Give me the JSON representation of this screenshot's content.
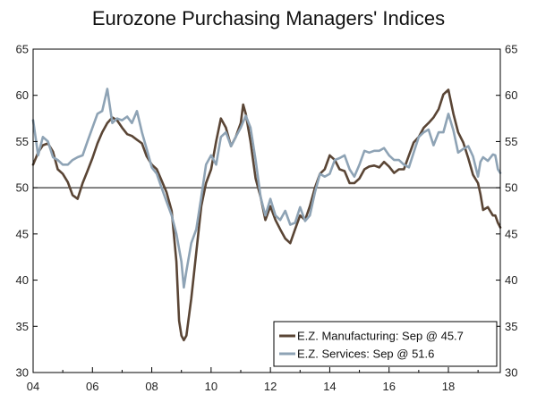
{
  "chart_data": {
    "type": "line",
    "title": "Eurozone Purchasing Managers' Indices",
    "xlabel": "",
    "ylabel": "",
    "xlim": [
      2004.0,
      2019.75
    ],
    "ylim": [
      30,
      65
    ],
    "x_ticks": [
      2004,
      2006,
      2008,
      2010,
      2012,
      2014,
      2016,
      2018
    ],
    "x_tick_labels": [
      "04",
      "06",
      "08",
      "10",
      "12",
      "14",
      "16",
      "18"
    ],
    "y_ticks": [
      30,
      35,
      40,
      45,
      50,
      55,
      60,
      65
    ],
    "y_tick_labels": [
      "30",
      "35",
      "40",
      "45",
      "50",
      "55",
      "60",
      "65"
    ],
    "reference_line": 50,
    "legend_position": "bottom-right",
    "series": [
      {
        "name": "E.Z. Manufacturing: Sep @ 45.7",
        "color": "#5a4535",
        "points": [
          [
            2004.0,
            52.5
          ],
          [
            2004.17,
            53.8
          ],
          [
            2004.33,
            54.6
          ],
          [
            2004.5,
            54.8
          ],
          [
            2004.67,
            53.9
          ],
          [
            2004.83,
            52.0
          ],
          [
            2005.0,
            51.5
          ],
          [
            2005.17,
            50.6
          ],
          [
            2005.33,
            49.2
          ],
          [
            2005.5,
            48.8
          ],
          [
            2005.67,
            50.5
          ],
          [
            2005.83,
            51.8
          ],
          [
            2006.0,
            53.2
          ],
          [
            2006.17,
            54.8
          ],
          [
            2006.33,
            56.0
          ],
          [
            2006.5,
            57.0
          ],
          [
            2006.67,
            57.6
          ],
          [
            2006.83,
            57.3
          ],
          [
            2007.0,
            56.5
          ],
          [
            2007.17,
            55.8
          ],
          [
            2007.33,
            55.6
          ],
          [
            2007.5,
            55.2
          ],
          [
            2007.67,
            54.8
          ],
          [
            2007.83,
            53.4
          ],
          [
            2008.0,
            52.5
          ],
          [
            2008.17,
            52.0
          ],
          [
            2008.33,
            50.8
          ],
          [
            2008.5,
            49.5
          ],
          [
            2008.67,
            47.5
          ],
          [
            2008.83,
            42.0
          ],
          [
            2008.92,
            35.6
          ],
          [
            2009.0,
            34.0
          ],
          [
            2009.08,
            33.5
          ],
          [
            2009.17,
            34.0
          ],
          [
            2009.33,
            38.0
          ],
          [
            2009.5,
            43.0
          ],
          [
            2009.67,
            48.0
          ],
          [
            2009.83,
            50.5
          ],
          [
            2010.0,
            52.0
          ],
          [
            2010.17,
            55.0
          ],
          [
            2010.33,
            57.5
          ],
          [
            2010.5,
            56.5
          ],
          [
            2010.67,
            54.5
          ],
          [
            2010.83,
            55.5
          ],
          [
            2011.0,
            57.0
          ],
          [
            2011.08,
            59.0
          ],
          [
            2011.17,
            58.0
          ],
          [
            2011.33,
            55.0
          ],
          [
            2011.5,
            51.0
          ],
          [
            2011.67,
            49.0
          ],
          [
            2011.83,
            46.5
          ],
          [
            2012.0,
            48.0
          ],
          [
            2012.17,
            46.5
          ],
          [
            2012.33,
            45.5
          ],
          [
            2012.5,
            44.5
          ],
          [
            2012.67,
            44.0
          ],
          [
            2012.83,
            45.5
          ],
          [
            2013.0,
            47.0
          ],
          [
            2013.17,
            46.5
          ],
          [
            2013.33,
            48.0
          ],
          [
            2013.5,
            50.0
          ],
          [
            2013.67,
            51.5
          ],
          [
            2013.83,
            52.0
          ],
          [
            2014.0,
            53.5
          ],
          [
            2014.17,
            53.0
          ],
          [
            2014.33,
            52.0
          ],
          [
            2014.5,
            51.8
          ],
          [
            2014.67,
            50.5
          ],
          [
            2014.83,
            50.5
          ],
          [
            2015.0,
            51.0
          ],
          [
            2015.17,
            52.0
          ],
          [
            2015.33,
            52.3
          ],
          [
            2015.5,
            52.4
          ],
          [
            2015.67,
            52.2
          ],
          [
            2015.83,
            52.8
          ],
          [
            2016.0,
            52.3
          ],
          [
            2016.17,
            51.6
          ],
          [
            2016.33,
            52.0
          ],
          [
            2016.5,
            52.0
          ],
          [
            2016.67,
            53.5
          ],
          [
            2016.83,
            54.9
          ],
          [
            2017.0,
            55.5
          ],
          [
            2017.17,
            56.5
          ],
          [
            2017.33,
            57.0
          ],
          [
            2017.5,
            57.6
          ],
          [
            2017.67,
            58.5
          ],
          [
            2017.83,
            60.1
          ],
          [
            2018.0,
            60.6
          ],
          [
            2018.17,
            58.0
          ],
          [
            2018.33,
            56.0
          ],
          [
            2018.5,
            54.9
          ],
          [
            2018.67,
            53.2
          ],
          [
            2018.83,
            51.4
          ],
          [
            2019.0,
            50.5
          ],
          [
            2019.08,
            49.3
          ],
          [
            2019.17,
            47.6
          ],
          [
            2019.33,
            47.9
          ],
          [
            2019.5,
            47.0
          ],
          [
            2019.58,
            47.0
          ],
          [
            2019.67,
            46.2
          ],
          [
            2019.75,
            45.7
          ]
        ]
      },
      {
        "name": "E.Z. Services: Sep @ 51.6",
        "color": "#8ea3b5",
        "points": [
          [
            2004.0,
            57.3
          ],
          [
            2004.17,
            53.5
          ],
          [
            2004.33,
            55.5
          ],
          [
            2004.5,
            55.0
          ],
          [
            2004.67,
            53.3
          ],
          [
            2004.83,
            53.0
          ],
          [
            2005.0,
            52.5
          ],
          [
            2005.17,
            52.5
          ],
          [
            2005.33,
            53.0
          ],
          [
            2005.5,
            53.3
          ],
          [
            2005.67,
            53.5
          ],
          [
            2005.83,
            55.0
          ],
          [
            2006.0,
            56.5
          ],
          [
            2006.17,
            58.0
          ],
          [
            2006.33,
            58.3
          ],
          [
            2006.5,
            60.7
          ],
          [
            2006.67,
            57.0
          ],
          [
            2006.83,
            57.5
          ],
          [
            2007.0,
            57.3
          ],
          [
            2007.17,
            57.7
          ],
          [
            2007.33,
            57.0
          ],
          [
            2007.5,
            58.3
          ],
          [
            2007.67,
            56.0
          ],
          [
            2007.83,
            54.2
          ],
          [
            2008.0,
            52.2
          ],
          [
            2008.17,
            51.5
          ],
          [
            2008.33,
            50.0
          ],
          [
            2008.5,
            48.5
          ],
          [
            2008.67,
            47.0
          ],
          [
            2008.83,
            45.0
          ],
          [
            2009.0,
            42.0
          ],
          [
            2009.08,
            39.2
          ],
          [
            2009.17,
            41.0
          ],
          [
            2009.33,
            44.0
          ],
          [
            2009.5,
            45.5
          ],
          [
            2009.67,
            49.0
          ],
          [
            2009.83,
            52.5
          ],
          [
            2010.0,
            53.5
          ],
          [
            2010.17,
            52.5
          ],
          [
            2010.33,
            55.5
          ],
          [
            2010.5,
            56.0
          ],
          [
            2010.67,
            54.5
          ],
          [
            2010.83,
            55.5
          ],
          [
            2011.0,
            56.5
          ],
          [
            2011.17,
            57.8
          ],
          [
            2011.33,
            56.5
          ],
          [
            2011.5,
            53.0
          ],
          [
            2011.67,
            49.0
          ],
          [
            2011.83,
            47.0
          ],
          [
            2012.0,
            48.8
          ],
          [
            2012.17,
            47.0
          ],
          [
            2012.33,
            46.5
          ],
          [
            2012.5,
            47.5
          ],
          [
            2012.67,
            46.0
          ],
          [
            2012.83,
            46.2
          ],
          [
            2013.0,
            47.9
          ],
          [
            2013.17,
            46.4
          ],
          [
            2013.33,
            47.0
          ],
          [
            2013.5,
            49.5
          ],
          [
            2013.67,
            51.5
          ],
          [
            2013.83,
            51.2
          ],
          [
            2014.0,
            51.5
          ],
          [
            2014.17,
            53.0
          ],
          [
            2014.33,
            53.2
          ],
          [
            2014.5,
            53.5
          ],
          [
            2014.67,
            52.0
          ],
          [
            2014.83,
            51.2
          ],
          [
            2015.0,
            52.5
          ],
          [
            2015.17,
            54.0
          ],
          [
            2015.33,
            53.8
          ],
          [
            2015.5,
            54.0
          ],
          [
            2015.67,
            54.0
          ],
          [
            2015.83,
            54.3
          ],
          [
            2016.0,
            53.5
          ],
          [
            2016.17,
            53.0
          ],
          [
            2016.33,
            53.0
          ],
          [
            2016.5,
            52.5
          ],
          [
            2016.67,
            52.2
          ],
          [
            2016.83,
            53.8
          ],
          [
            2017.0,
            55.5
          ],
          [
            2017.17,
            56.0
          ],
          [
            2017.33,
            56.3
          ],
          [
            2017.5,
            54.6
          ],
          [
            2017.67,
            56.0
          ],
          [
            2017.83,
            56.0
          ],
          [
            2018.0,
            58.0
          ],
          [
            2018.17,
            56.2
          ],
          [
            2018.33,
            53.8
          ],
          [
            2018.5,
            54.2
          ],
          [
            2018.67,
            54.5
          ],
          [
            2018.83,
            53.4
          ],
          [
            2019.0,
            51.2
          ],
          [
            2019.08,
            52.8
          ],
          [
            2019.17,
            53.3
          ],
          [
            2019.33,
            52.9
          ],
          [
            2019.5,
            53.6
          ],
          [
            2019.58,
            53.5
          ],
          [
            2019.67,
            52.0
          ],
          [
            2019.75,
            51.6
          ]
        ]
      }
    ]
  }
}
